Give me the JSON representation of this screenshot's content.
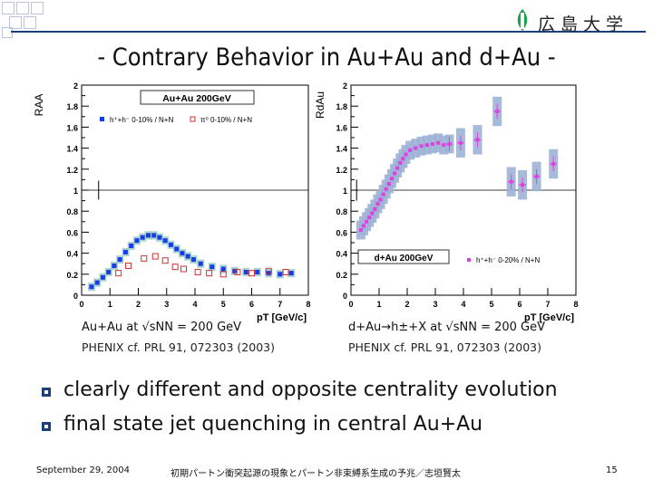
{
  "slide_title": "- Contrary Behavior in Au+Au and d+Au -",
  "logo_text": "広島大学",
  "left_caption": "Au+Au at √sNN = 200 GeV",
  "left_reference": "PHENIX cf. PRL 91, 072303 (2003)",
  "right_caption": "d+Au→h±+X at √sNN = 200 GeV",
  "right_reference": "PHENIX cf. PRL 91, 072303 (2003)",
  "bullets": [
    "clearly different and opposite centrality evolution",
    "final state jet quenching in central Au+Au"
  ],
  "footer": {
    "date": "September 29, 2004",
    "talk": "初期パートン衝突起源の現象とパートン非束縛系生成の予兆／志垣賢太",
    "page": "15"
  },
  "colors": {
    "accent": "#1a3f7a",
    "blue": "#1a3be8",
    "red": "#d23030",
    "magenta": "#e040e0",
    "band_auau": "#9ecfc9",
    "band_dau": "#9fb3d6"
  },
  "chart_data": [
    {
      "type": "scatter",
      "title": "Au+Au 200GeV",
      "ylabel": "RAA",
      "xlabel": "pT [GeV/c]",
      "xlim": [
        0,
        8
      ],
      "ylim": [
        0,
        2
      ],
      "xticks": [
        "0",
        "1",
        "2",
        "3",
        "4",
        "5",
        "6",
        "7",
        "8"
      ],
      "yticks": [
        "0",
        "0.2",
        "0.4",
        "0.6",
        "0.8",
        "1",
        "1.2",
        "1.4",
        "1.6",
        "1.8",
        "2"
      ],
      "reference_line": 1,
      "legend": [
        {
          "label": "h⁺+h⁻ 0-10% / N+N"
        },
        {
          "label": "π⁰ 0-10% / N+N"
        }
      ],
      "series": [
        {
          "name": "h⁺+h⁻ 0-10% / N+N",
          "x": [
            0.35,
            0.55,
            0.75,
            0.95,
            1.15,
            1.35,
            1.55,
            1.75,
            1.95,
            2.15,
            2.35,
            2.55,
            2.75,
            2.95,
            3.15,
            3.35,
            3.55,
            3.75,
            3.95,
            4.2,
            4.6,
            5.0,
            5.4,
            5.8,
            6.2,
            6.6,
            7.0,
            7.4
          ],
          "y": [
            0.08,
            0.12,
            0.17,
            0.22,
            0.28,
            0.34,
            0.41,
            0.47,
            0.52,
            0.55,
            0.57,
            0.57,
            0.55,
            0.52,
            0.48,
            0.44,
            0.4,
            0.37,
            0.34,
            0.3,
            0.27,
            0.25,
            0.23,
            0.22,
            0.22,
            0.21,
            0.2,
            0.21
          ]
        },
        {
          "name": "π⁰ 0-10% / N+N",
          "x": [
            1.3,
            1.65,
            2.2,
            2.6,
            2.95,
            3.3,
            3.6,
            4.1,
            4.5,
            5.0,
            5.5,
            6.0,
            6.6,
            7.2
          ],
          "y": [
            0.21,
            0.28,
            0.35,
            0.37,
            0.33,
            0.27,
            0.25,
            0.22,
            0.21,
            0.2,
            0.22,
            0.21,
            0.23,
            0.22
          ]
        }
      ]
    },
    {
      "type": "scatter",
      "title": "d+Au 200GeV",
      "ylabel": "RdAu",
      "xlabel": "pT [GeV/c]",
      "xlim": [
        0,
        8
      ],
      "ylim": [
        0,
        2
      ],
      "xticks": [
        "0",
        "1",
        "2",
        "3",
        "4",
        "5",
        "6",
        "7",
        "8"
      ],
      "yticks": [
        "0",
        "0.2",
        "0.4",
        "0.6",
        "0.8",
        "1",
        "1.2",
        "1.4",
        "1.6",
        "1.8",
        "2"
      ],
      "reference_line": 1,
      "legend": [
        {
          "label": "h⁺+h⁻ 0-20% / N+N"
        }
      ],
      "series": [
        {
          "name": "h⁺+h⁻ 0-20% / N+N",
          "x": [
            0.35,
            0.45,
            0.55,
            0.65,
            0.75,
            0.85,
            0.95,
            1.05,
            1.15,
            1.25,
            1.35,
            1.45,
            1.55,
            1.65,
            1.75,
            1.85,
            1.95,
            2.1,
            2.3,
            2.5,
            2.7,
            2.9,
            3.1,
            3.3,
            3.5,
            3.9,
            4.5,
            5.2,
            5.7,
            6.1,
            6.6,
            7.2
          ],
          "y": [
            0.62,
            0.66,
            0.7,
            0.74,
            0.78,
            0.82,
            0.87,
            0.91,
            0.96,
            1.01,
            1.06,
            1.11,
            1.16,
            1.21,
            1.26,
            1.3,
            1.34,
            1.38,
            1.4,
            1.42,
            1.43,
            1.44,
            1.45,
            1.43,
            1.44,
            1.45,
            1.48,
            1.75,
            1.08,
            1.05,
            1.13,
            1.25
          ]
        }
      ]
    }
  ]
}
